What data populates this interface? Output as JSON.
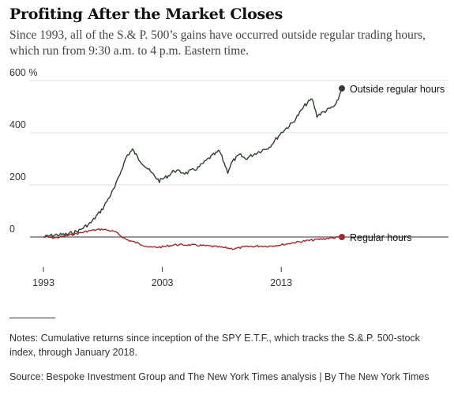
{
  "header": {
    "title": "Profiting After the Market Closes",
    "subtitle": "Since 1993, all of the S.& P. 500’s gains have occurred outside regular trading hours, which run from 9:30 a.m. to 4 p.m. Eastern time."
  },
  "footer": {
    "notes": "Notes: Cumulative returns since inception of the SPY E.T.F., which tracks the S.&.P. 500-stock index, through January 2018.",
    "source": "Source: Bespoke Investment Group and The New York Times analysis | By The New York Times"
  },
  "chart_data": {
    "type": "line",
    "title": "Profiting After the Market Closes",
    "xlabel": "",
    "ylabel": "",
    "xlim": [
      1993,
      2018.1
    ],
    "ylim": [
      -100,
      600
    ],
    "x_ticks": [
      {
        "value": 1993,
        "label": "1993"
      },
      {
        "value": 2003,
        "label": "2003"
      },
      {
        "value": 2013,
        "label": "2013"
      }
    ],
    "y_ticks": [
      {
        "value": 600,
        "label": "600 %"
      },
      {
        "value": 400,
        "label": "400"
      },
      {
        "value": 200,
        "label": "200"
      },
      {
        "value": 0,
        "label": "0"
      }
    ],
    "grid": true,
    "legend": "direct labels at line ends",
    "series": [
      {
        "name": "Outside regular hours",
        "color": "#2f3d2f",
        "x": [
          1993,
          1994,
          1995,
          1996,
          1997,
          1998,
          1999,
          2000,
          2000.5,
          2001,
          2002,
          2002.75,
          2003.5,
          2004,
          2005,
          2006,
          2007,
          2007.8,
          2008.5,
          2008.9,
          2009.5,
          2010,
          2011,
          2012,
          2013,
          2014,
          2015,
          2015.6,
          2016,
          2016.6,
          2017,
          2017.6,
          2018.1
        ],
        "y": [
          0,
          8,
          10,
          25,
          55,
          110,
          190,
          310,
          335,
          300,
          250,
          215,
          235,
          255,
          245,
          265,
          305,
          330,
          250,
          290,
          315,
          300,
          325,
          345,
          400,
          440,
          505,
          530,
          465,
          480,
          490,
          505,
          570
        ]
      },
      {
        "name": "Regular hours",
        "color": "#a02a2a",
        "x": [
          1993,
          1994,
          1995,
          1996,
          1997,
          1998,
          1999,
          2000,
          2001,
          2002,
          2003,
          2004,
          2005,
          2006,
          2007,
          2008,
          2009,
          2010,
          2011,
          2012,
          2013,
          2014,
          2015,
          2016,
          2017,
          2018.1
        ],
        "y": [
          0,
          -3,
          5,
          15,
          25,
          30,
          20,
          -10,
          -25,
          -40,
          -38,
          -30,
          -30,
          -32,
          -35,
          -40,
          -45,
          -38,
          -35,
          -35,
          -30,
          -22,
          -15,
          -10,
          -5,
          0
        ]
      }
    ]
  }
}
